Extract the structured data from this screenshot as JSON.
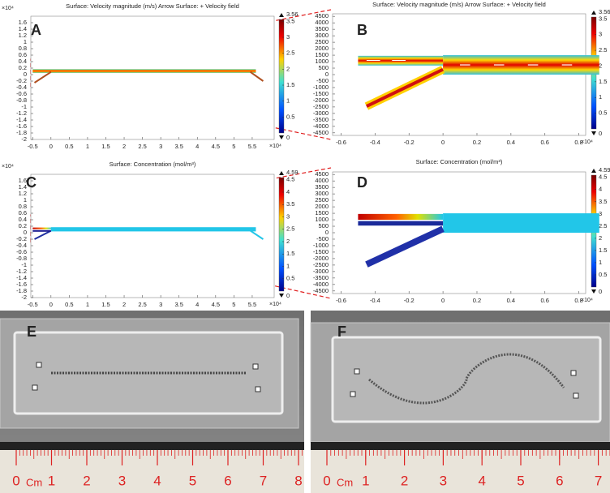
{
  "panels": [
    {
      "label": "A",
      "title": "Surface: Velocity magnitude (m/s)  Arrow Surface:  + Velocity field",
      "x_exponent": "×10⁴",
      "y_exponent": "×10⁴",
      "xlim": [
        -0.55,
        6.1
      ],
      "xticks": [
        -0.5,
        0,
        0.5,
        1,
        1.5,
        2,
        2.5,
        3,
        3.5,
        4,
        4.5,
        5,
        5.5
      ],
      "ylim": [
        -2,
        1.8
      ],
      "yticks": [
        1.6,
        1.4,
        1.2,
        1,
        0.8,
        0.6,
        0.4,
        0.2,
        0,
        -0.2,
        -0.4,
        -0.6,
        -0.8,
        -1,
        -1.2,
        -1.4,
        -1.6,
        -1.8,
        -2
      ],
      "colorbar": {
        "max": 3.56,
        "min": 0,
        "ticks": [
          3.5,
          3,
          2.5,
          2,
          1.5,
          1,
          0.5
        ]
      }
    },
    {
      "label": "B",
      "title": "Surface: Velocity magnitude (m/s)  Arrow Surface:  + Velocity field",
      "x_exponent": "×10⁴",
      "xlim": [
        -0.65,
        0.84
      ],
      "xticks": [
        -0.6,
        -0.4,
        -0.2,
        0,
        0.2,
        0.4,
        0.6,
        0.8
      ],
      "ylim": [
        -4700,
        4700
      ],
      "yticks": [
        4500,
        4000,
        3500,
        3000,
        2500,
        2000,
        1500,
        1000,
        500,
        0,
        -500,
        -1000,
        -1500,
        -2000,
        -2500,
        -3000,
        -3500,
        -4000,
        -4500
      ],
      "colorbar": {
        "max": 3.56,
        "min": 0,
        "ticks": [
          3.5,
          3,
          2.5,
          2,
          1.5,
          1,
          0.5
        ]
      }
    },
    {
      "label": "C",
      "title": "Surface: Concentration (mol/m³)",
      "x_exponent": "×10⁴",
      "y_exponent": "×10⁴",
      "xlim": [
        -0.55,
        6.1
      ],
      "xticks": [
        -0.5,
        0,
        0.5,
        1,
        1.5,
        2,
        2.5,
        3,
        3.5,
        4,
        4.5,
        5,
        5.5
      ],
      "ylim": [
        -2,
        1.8
      ],
      "yticks": [
        1.6,
        1.4,
        1.2,
        1,
        0.8,
        0.6,
        0.4,
        0.2,
        0,
        -0.2,
        -0.4,
        -0.6,
        -0.8,
        -1,
        -1.2,
        -1.4,
        -1.6,
        -1.8,
        -2
      ],
      "colorbar": {
        "max": 4.59,
        "min": 0,
        "ticks": [
          4.5,
          4,
          3.5,
          3,
          2.5,
          2,
          1.5,
          1,
          0.5
        ]
      }
    },
    {
      "label": "D",
      "title": "Surface: Concentration (mol/m³)",
      "x_exponent": "×10⁴",
      "xlim": [
        -0.65,
        0.84
      ],
      "xticks": [
        -0.6,
        -0.4,
        -0.2,
        0,
        0.2,
        0.4,
        0.6,
        0.8
      ],
      "ylim": [
        -4700,
        4700
      ],
      "yticks": [
        4500,
        4000,
        3500,
        3000,
        2500,
        2000,
        1500,
        1000,
        500,
        0,
        -500,
        -1000,
        -1500,
        -2000,
        -2500,
        -3000,
        -3500,
        -4000,
        -4500
      ],
      "colorbar": {
        "max": 4.59,
        "min": 0,
        "ticks": [
          4.5,
          4,
          3.5,
          3,
          2.5,
          2,
          1.5,
          1,
          0.5
        ]
      }
    }
  ],
  "photos": [
    {
      "label": "E",
      "ruler_unit": "Cm",
      "ruler_ticks": [
        0,
        1,
        2,
        3,
        4,
        5,
        6,
        7,
        8
      ]
    },
    {
      "label": "F",
      "ruler_unit": "Cm",
      "ruler_ticks": [
        0,
        1,
        2,
        3,
        4,
        5,
        6,
        7
      ]
    }
  ]
}
